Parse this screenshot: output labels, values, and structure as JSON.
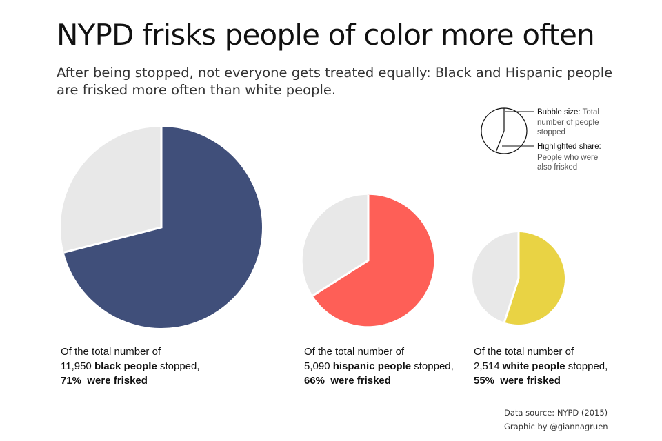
{
  "title": "NYPD frisks people of color more often",
  "subtitle": "After being stopped, not everyone gets treated equally: Black and Hispanic people are frisked more often than white people.",
  "legend": {
    "size_label": "Bubble size:",
    "size_text_1": " Total",
    "size_text_2": "number of people",
    "size_text_3": "stopped",
    "share_label": "Highlighted share:",
    "share_text_1": "People who were",
    "share_text_2": "also frisked"
  },
  "chart_data": {
    "type": "pie",
    "title": "NYPD frisks people of color more often",
    "encoding": "bubble area = total stopped; highlighted slice = share frisked",
    "groups": [
      {
        "group": "black people",
        "stopped": 11950,
        "stopped_text": "11,950",
        "frisked_pct": 71,
        "pct_text": "71%",
        "color": "#404f7a",
        "caption_intro": "Of the total number of",
        "caption_stopped": "stopped,",
        "caption_frisked": "were frisked"
      },
      {
        "group": "hispanic people",
        "stopped": 5090,
        "stopped_text": "5,090",
        "frisked_pct": 66,
        "pct_text": "66%",
        "color": "#fe5f57",
        "caption_intro": "Of the total number of",
        "caption_stopped": "stopped,",
        "caption_frisked": "were frisked"
      },
      {
        "group": "white people",
        "stopped": 2514,
        "stopped_text": "2,514",
        "frisked_pct": 55,
        "pct_text": "55%",
        "color": "#e9d344",
        "caption_intro": "Of the total number of",
        "caption_stopped": "stopped,",
        "caption_frisked": "were frisked"
      }
    ],
    "remainder_color": "#e8e8e8"
  },
  "source": {
    "data_source": "Data source: NYPD (2015)",
    "credit": "Graphic by @giannagruen"
  }
}
